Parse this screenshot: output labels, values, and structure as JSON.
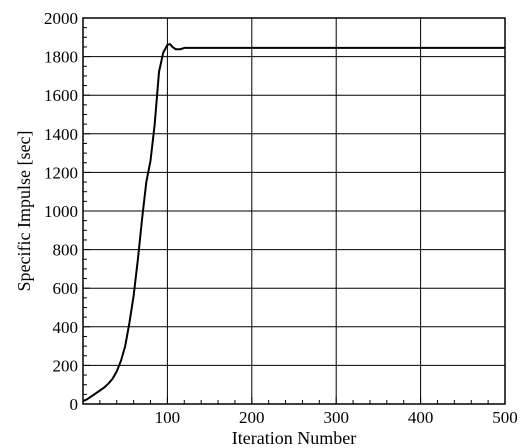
{
  "chart_data": {
    "type": "line",
    "xlabel": "Iteration Number",
    "ylabel": "Specific Impulse [sec]",
    "xlim": [
      0,
      500
    ],
    "ylim": [
      0,
      2000
    ],
    "xticks": [
      100,
      200,
      300,
      400,
      500
    ],
    "yticks": [
      0,
      200,
      400,
      600,
      800,
      1000,
      1200,
      1400,
      1600,
      1800,
      2000
    ],
    "grid": true,
    "legend": "none",
    "series": [
      {
        "color": "#000000",
        "x": [
          0,
          5,
          10,
          15,
          20,
          25,
          30,
          35,
          40,
          45,
          50,
          55,
          60,
          65,
          70,
          75,
          80,
          85,
          90,
          95,
          100,
          103,
          106,
          110,
          115,
          120,
          130,
          150,
          200,
          300,
          400,
          500
        ],
        "y": [
          15,
          25,
          40,
          55,
          70,
          85,
          105,
          130,
          170,
          225,
          300,
          420,
          560,
          750,
          960,
          1150,
          1260,
          1450,
          1720,
          1820,
          1860,
          1865,
          1850,
          1838,
          1838,
          1845,
          1845,
          1845,
          1845,
          1845,
          1845,
          1845
        ]
      }
    ]
  }
}
